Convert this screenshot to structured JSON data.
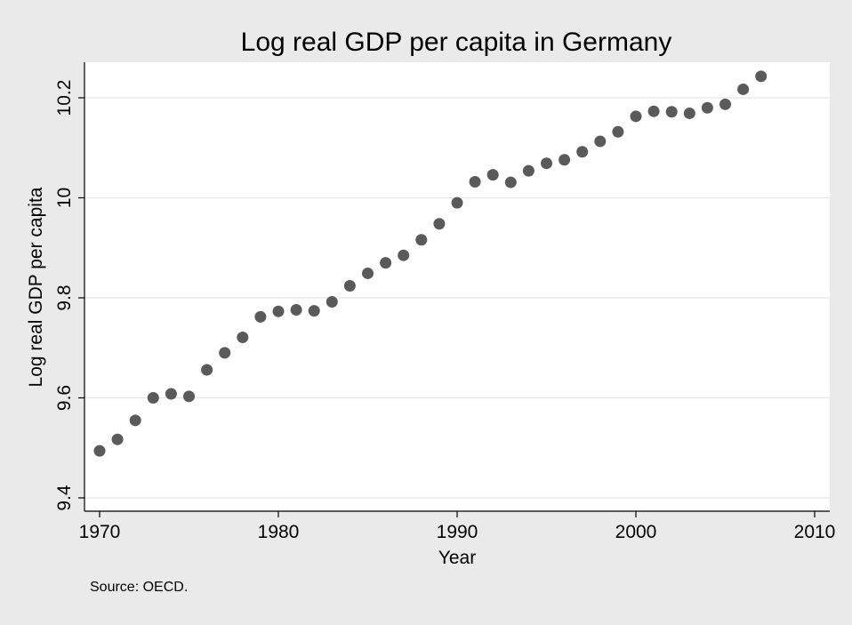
{
  "chart_data": {
    "type": "scatter",
    "title": "Log real GDP per capita in Germany",
    "xlabel": "Year",
    "ylabel": "Log real GDP per capita",
    "note": "Source: OECD.",
    "xlim": [
      1970,
      2010
    ],
    "ylim": [
      9.4,
      10.25
    ],
    "xticks": [
      1970,
      1980,
      1990,
      2000,
      2010
    ],
    "yticks": [
      9.4,
      9.6,
      9.8,
      10.0,
      10.2
    ],
    "xtick_labels": [
      "1970",
      "1980",
      "1990",
      "2000",
      "2010"
    ],
    "ytick_labels": [
      "9.4",
      "9.6",
      "9.8",
      "10",
      "10.2"
    ],
    "grid": true,
    "legend": "none",
    "colors": {
      "background": "#eaeaea",
      "plot_area": "#ffffff",
      "marker": "#5a5a5a",
      "grid": "#e6e6e6"
    },
    "series": [
      {
        "x": [
          1970,
          1971,
          1972,
          1973,
          1974,
          1975,
          1976,
          1977,
          1978,
          1979,
          1980,
          1981,
          1982,
          1983,
          1984,
          1985,
          1986,
          1987,
          1988,
          1989,
          1990,
          1991,
          1992,
          1993,
          1994,
          1995,
          1996,
          1997,
          1998,
          1999,
          2000,
          2001,
          2002,
          2003,
          2004,
          2005,
          2006,
          2007
        ],
        "y": [
          9.494,
          9.517,
          9.555,
          9.6,
          9.608,
          9.603,
          9.656,
          9.69,
          9.721,
          9.762,
          9.773,
          9.776,
          9.774,
          9.792,
          9.824,
          9.849,
          9.87,
          9.885,
          9.916,
          9.948,
          9.99,
          10.032,
          10.046,
          10.031,
          10.054,
          10.069,
          10.076,
          10.092,
          10.113,
          10.132,
          10.163,
          10.173,
          10.172,
          10.169,
          10.18,
          10.187,
          10.217,
          10.243
        ]
      }
    ]
  }
}
